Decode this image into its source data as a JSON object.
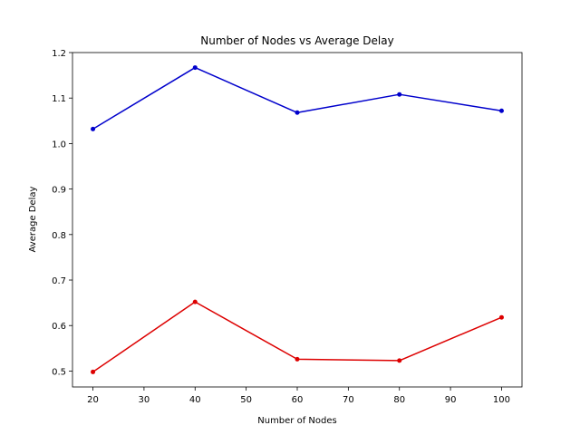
{
  "chart_data": {
    "type": "line",
    "title": "Number of Nodes vs Average Delay",
    "xlabel": "Number of Nodes",
    "ylabel": "Average Delay",
    "x": [
      20,
      40,
      60,
      80,
      100
    ],
    "xlim": [
      16,
      104
    ],
    "ylim": [
      0.465,
      1.2
    ],
    "xticks": [
      20,
      30,
      40,
      50,
      60,
      70,
      80,
      90,
      100
    ],
    "yticks": [
      0.5,
      0.6,
      0.7,
      0.8,
      0.9,
      1.0,
      1.1,
      1.2
    ],
    "ytick_labels": [
      "0.5",
      "0.6",
      "0.7",
      "0.8",
      "0.9",
      "1.0",
      "1.1",
      "1.2"
    ],
    "grid": false,
    "legend": "none",
    "series": [
      {
        "color": "#0000cc",
        "values": [
          1.032,
          1.167,
          1.068,
          1.108,
          1.072
        ]
      },
      {
        "color": "#dd0000",
        "values": [
          0.498,
          0.652,
          0.526,
          0.523,
          0.618
        ]
      }
    ]
  }
}
